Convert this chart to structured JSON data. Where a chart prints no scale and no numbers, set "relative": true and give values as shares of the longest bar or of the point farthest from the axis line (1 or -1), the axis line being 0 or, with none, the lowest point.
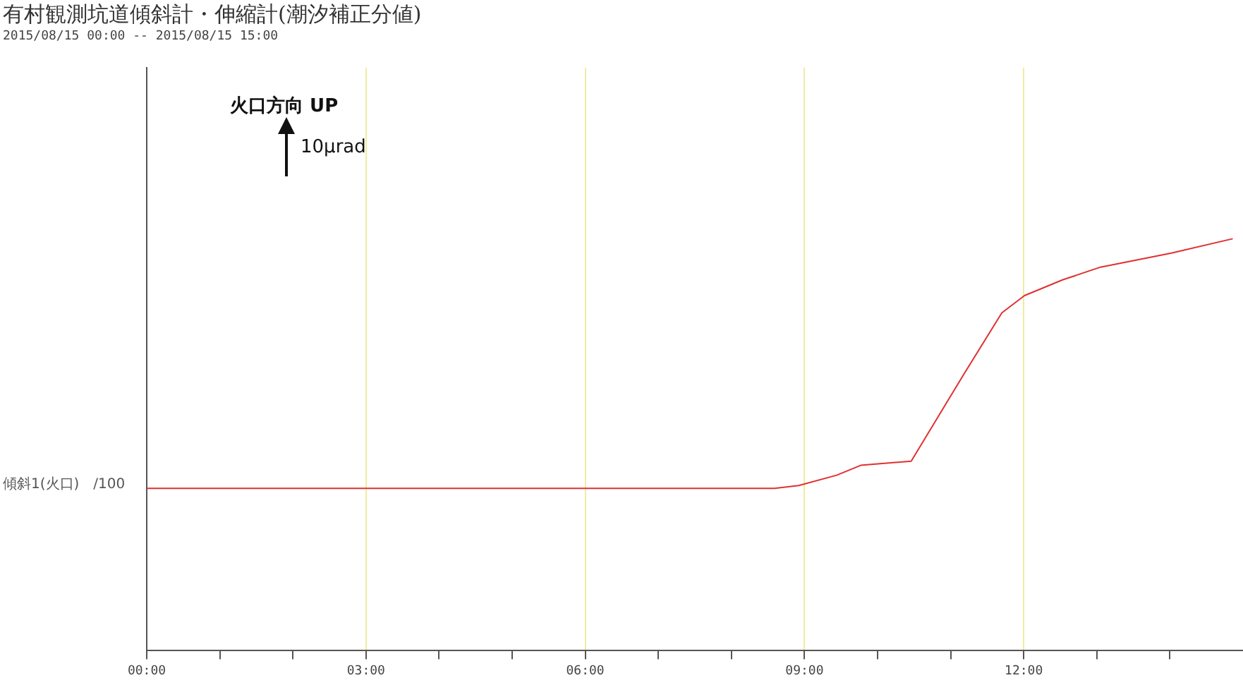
{
  "chart_data": {
    "type": "line",
    "relative": true,
    "title": "有村観測坑道傾斜計・伸縮計(潮汐補正分値)",
    "subtitle": "2015/08/15 00:00 -- 2015/08/15 15:00",
    "ylabel": "傾斜1(火口)　/100",
    "annotations": [
      "火口方向 UP",
      "10μrad"
    ],
    "xlim": [
      0,
      15
    ],
    "xticks": [
      {
        "value": 0,
        "label": "00:00"
      },
      {
        "value": 1,
        "label": null
      },
      {
        "value": 2,
        "label": null
      },
      {
        "value": 3,
        "label": "03:00"
      },
      {
        "value": 4,
        "label": null
      },
      {
        "value": 5,
        "label": null
      },
      {
        "value": 6,
        "label": "06:00"
      },
      {
        "value": 7,
        "label": null
      },
      {
        "value": 8,
        "label": null
      },
      {
        "value": 9,
        "label": "09:00"
      },
      {
        "value": 10,
        "label": null
      },
      {
        "value": 11,
        "label": null
      },
      {
        "value": 12,
        "label": "12:00"
      },
      {
        "value": 13,
        "label": null
      },
      {
        "value": 14,
        "label": null
      }
    ],
    "grid": "x",
    "marker": "none",
    "legend": false,
    "series": [
      {
        "color": "#e03030",
        "x": [
          0,
          3.4,
          8.59,
          8.92,
          9.44,
          9.77,
          10.46,
          11.18,
          11.7,
          12.01,
          12.53,
          13.05,
          14.02,
          14.86
        ],
        "values": [
          0.394,
          0.394,
          0.394,
          0.401,
          0.426,
          0.45,
          0.46,
          0.671,
          0.82,
          0.862,
          0.9,
          0.931,
          0.965,
          1.0
        ]
      }
    ]
  }
}
